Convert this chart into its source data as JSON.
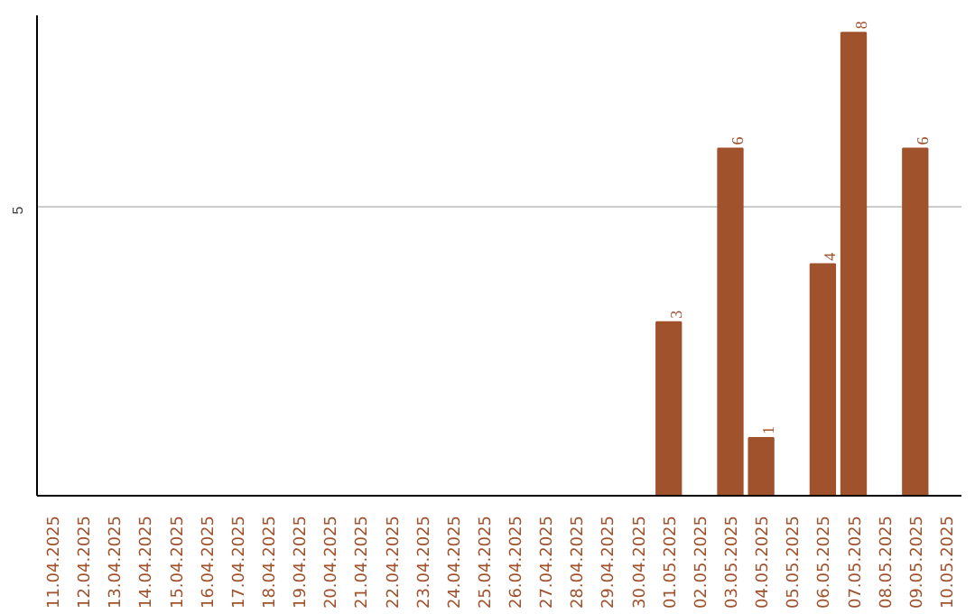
{
  "chart_data": {
    "type": "bar",
    "categories": [
      "11.04.2025",
      "12.04.2025",
      "13.04.2025",
      "14.04.2025",
      "15.04.2025",
      "16.04.2025",
      "17.04.2025",
      "18.04.2025",
      "19.04.2025",
      "20.04.2025",
      "21.04.2025",
      "22.04.2025",
      "23.04.2025",
      "24.04.2025",
      "25.04.2025",
      "26.04.2025",
      "27.04.2025",
      "28.04.2025",
      "29.04.2025",
      "30.04.2025",
      "01.05.2025",
      "02.05.2025",
      "03.05.2025",
      "04.05.2025",
      "05.05.2025",
      "06.05.2025",
      "07.05.2025",
      "08.05.2025",
      "09.05.2025",
      "10.05.2025"
    ],
    "values": [
      null,
      null,
      null,
      null,
      null,
      null,
      null,
      null,
      null,
      null,
      null,
      null,
      null,
      null,
      null,
      null,
      null,
      null,
      null,
      null,
      3,
      null,
      6,
      1,
      null,
      4,
      8,
      null,
      6,
      null
    ],
    "color": "#a0522d",
    "ylim": [
      0,
      8.3
    ],
    "yticks": [
      5
    ],
    "grid": "y",
    "data_labels": true
  }
}
